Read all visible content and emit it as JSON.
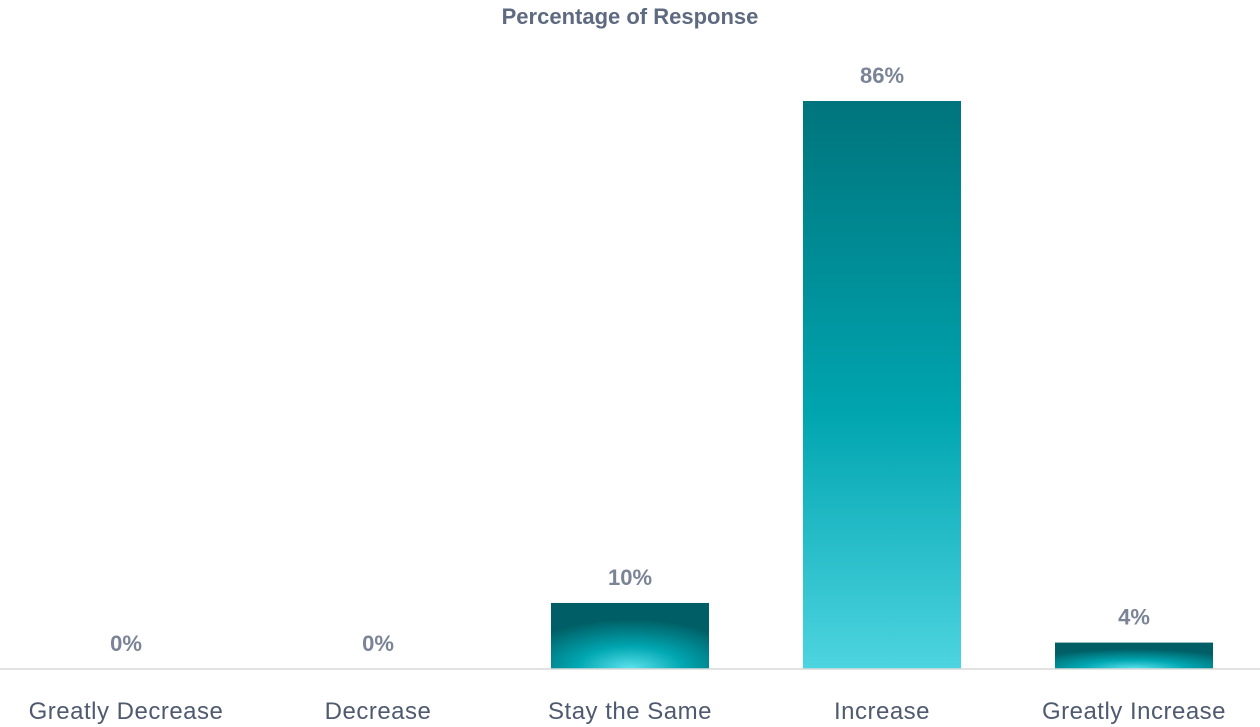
{
  "chart_data": {
    "type": "bar",
    "title": "Percentage of Response",
    "categories": [
      "Greatly Decrease",
      "Decrease",
      "Stay the Same",
      "Increase",
      "Greatly Increase"
    ],
    "values": [
      0,
      0,
      10,
      86,
      4
    ],
    "value_labels": [
      "0%",
      "0%",
      "10%",
      "86%",
      "4%"
    ],
    "xlabel": "",
    "ylabel": "",
    "ylim": [
      0,
      86
    ],
    "grid": false,
    "legend": "none",
    "colors": {
      "bar_dark": "#00747c",
      "bar_mid": "#00a5b0",
      "bar_light": "#4dd4e0",
      "axis": "#d9d9d9",
      "title": "#5e6a80",
      "data_label": "#7a8496",
      "tick_label": "#4f5a70"
    }
  }
}
